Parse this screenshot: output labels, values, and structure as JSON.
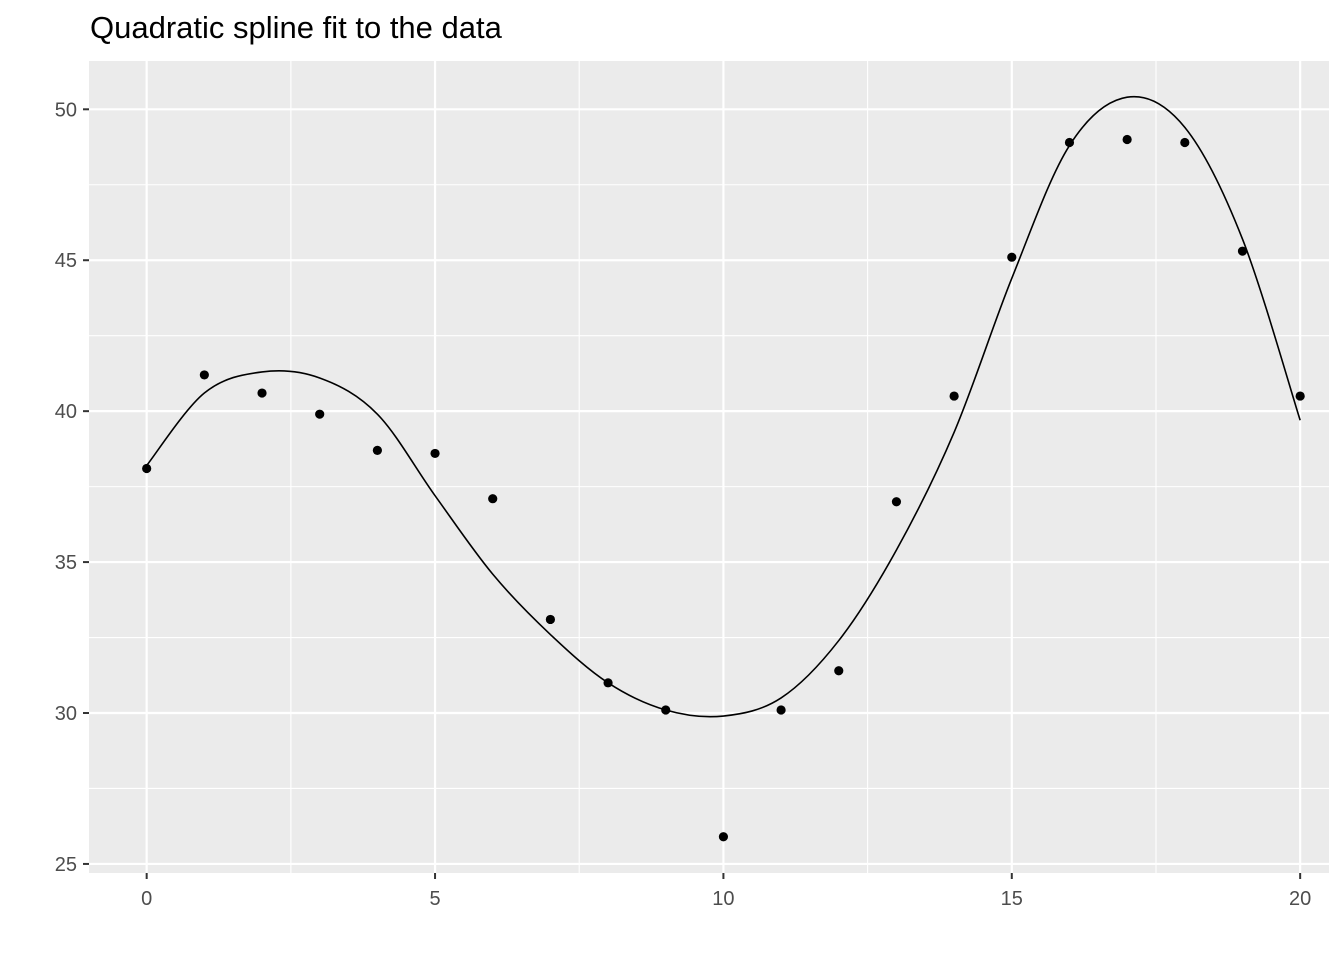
{
  "chart_data": {
    "type": "scatter",
    "title": "Quadratic spline fit to the data",
    "xlabel": "",
    "ylabel": "",
    "xlim": [
      -1,
      20.5
    ],
    "ylim": [
      24.7,
      51.6
    ],
    "x_ticks": [
      0,
      5,
      10,
      15,
      20
    ],
    "y_ticks": [
      25,
      30,
      35,
      40,
      45,
      50
    ],
    "x_tick_labels": [
      "0",
      "5",
      "10",
      "15",
      "20"
    ],
    "y_tick_labels": [
      "25",
      "30",
      "35",
      "40",
      "45",
      "50"
    ],
    "grid": true,
    "panel_background": "#ebebeb",
    "grid_color": "#ffffff",
    "series": [
      {
        "type": "scatter",
        "color": "#000000",
        "x": [
          0,
          1,
          2,
          3,
          4,
          5,
          6,
          7,
          8,
          9,
          10,
          11,
          12,
          13,
          14,
          15,
          16,
          17,
          18,
          19,
          20
        ],
        "y": [
          38.1,
          41.2,
          40.6,
          39.9,
          38.7,
          38.6,
          37.1,
          33.1,
          31.0,
          30.1,
          25.9,
          30.1,
          31.4,
          37.0,
          40.5,
          45.1,
          48.9,
          49.0,
          48.9,
          45.3,
          40.5
        ]
      },
      {
        "type": "line",
        "color": "#000000",
        "x": [
          0,
          1,
          2,
          3,
          4,
          5,
          6,
          7,
          8,
          9,
          10,
          11,
          12,
          13,
          14,
          15,
          16,
          17,
          18,
          19,
          20
        ],
        "y": [
          38.2,
          40.6,
          41.3,
          41.1,
          39.9,
          37.2,
          34.6,
          32.6,
          31.0,
          30.1,
          29.9,
          30.5,
          32.4,
          35.4,
          39.3,
          44.4,
          48.8,
          50.4,
          49.4,
          45.7,
          39.7
        ]
      }
    ]
  }
}
